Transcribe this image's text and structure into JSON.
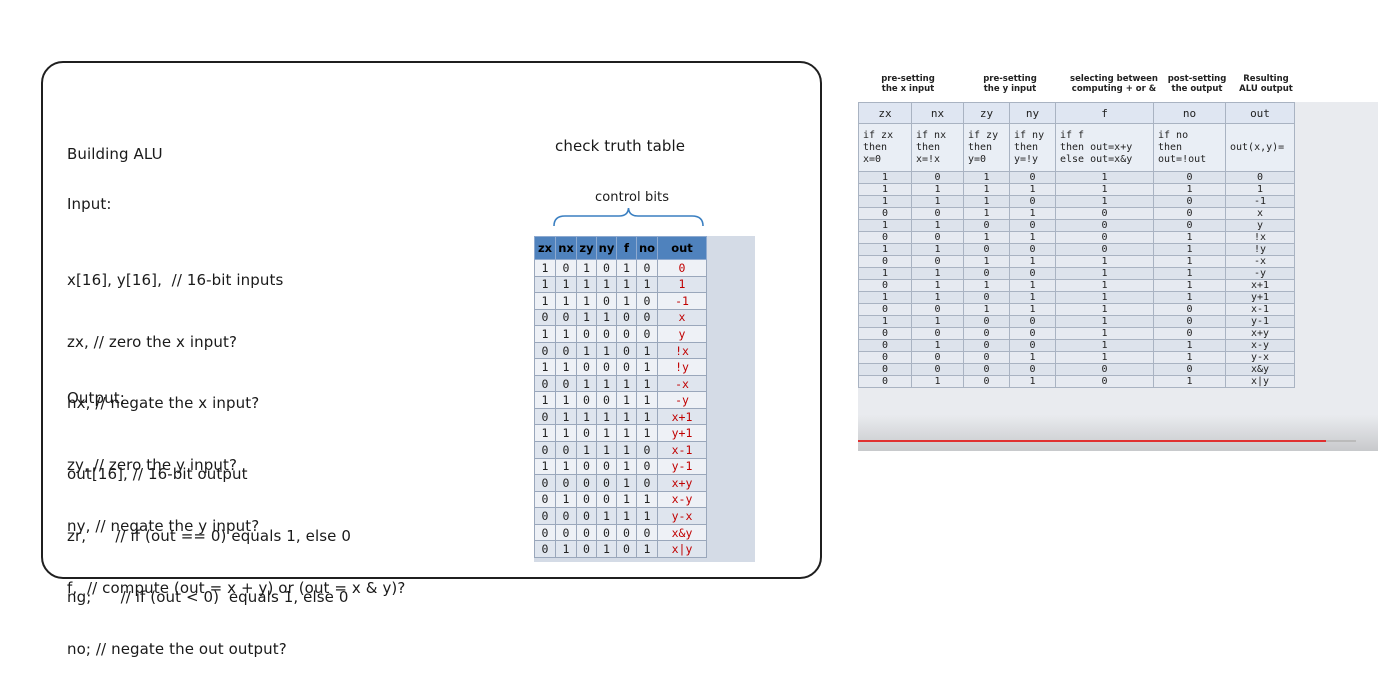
{
  "board": {
    "title": "Building ALU",
    "input_heading": "Input:",
    "input_lines": [
      "x[16], y[16],  // 16-bit inputs",
      "zx, // zero the x input?",
      "nx, // negate the x input?",
      "zy, // zero the y input?",
      "ny, // negate the y input?",
      "f,  // compute (out = x + y) or (out = x & y)?",
      "no; // negate the out output?"
    ],
    "output_heading": "Output:",
    "output_lines": [
      "out[16], // 16-bit output",
      "zr,      // if (out == 0) equals 1, else 0",
      "ng;      // if (out < 0)  equals 1, else 0"
    ],
    "check_title": "check truth table",
    "control_bits_label": "control bits"
  },
  "small_table": {
    "headers": [
      "zx",
      "nx",
      "zy",
      "ny",
      "f",
      "no",
      "out"
    ],
    "rows": [
      [
        "1",
        "0",
        "1",
        "0",
        "1",
        "0",
        "0"
      ],
      [
        "1",
        "1",
        "1",
        "1",
        "1",
        "1",
        "1"
      ],
      [
        "1",
        "1",
        "1",
        "0",
        "1",
        "0",
        "-1"
      ],
      [
        "0",
        "0",
        "1",
        "1",
        "0",
        "0",
        "x"
      ],
      [
        "1",
        "1",
        "0",
        "0",
        "0",
        "0",
        "y"
      ],
      [
        "0",
        "0",
        "1",
        "1",
        "0",
        "1",
        "!x"
      ],
      [
        "1",
        "1",
        "0",
        "0",
        "0",
        "1",
        "!y"
      ],
      [
        "0",
        "0",
        "1",
        "1",
        "1",
        "1",
        "-x"
      ],
      [
        "1",
        "1",
        "0",
        "0",
        "1",
        "1",
        "-y"
      ],
      [
        "0",
        "1",
        "1",
        "1",
        "1",
        "1",
        "x+1"
      ],
      [
        "1",
        "1",
        "0",
        "1",
        "1",
        "1",
        "y+1"
      ],
      [
        "0",
        "0",
        "1",
        "1",
        "1",
        "0",
        "x-1"
      ],
      [
        "1",
        "1",
        "0",
        "0",
        "1",
        "0",
        "y-1"
      ],
      [
        "0",
        "0",
        "0",
        "0",
        "1",
        "0",
        "x+y"
      ],
      [
        "0",
        "1",
        "0",
        "0",
        "1",
        "1",
        "x-y"
      ],
      [
        "0",
        "0",
        "0",
        "1",
        "1",
        "1",
        "y-x"
      ],
      [
        "0",
        "0",
        "0",
        "0",
        "0",
        "0",
        "x&y"
      ],
      [
        "0",
        "1",
        "0",
        "1",
        "0",
        "1",
        "x|y"
      ]
    ]
  },
  "big_table": {
    "group_captions": [
      "pre-setting\nthe x input",
      "pre-setting\nthe y input",
      "selecting between\ncomputing + or &",
      "post-setting\nthe output",
      "Resulting\nALU output"
    ],
    "headers": [
      "zx",
      "nx",
      "zy",
      "ny",
      "f",
      "no",
      "out"
    ],
    "descriptions": [
      "if zx\nthen\nx=0",
      "if nx\nthen\nx=!x",
      "if zy\nthen\ny=0",
      "if ny\nthen\ny=!y",
      "if f\nthen out=x+y\nelse out=x&y",
      "if no\nthen\nout=!out",
      "out(x,y)="
    ],
    "rows": [
      [
        "1",
        "0",
        "1",
        "0",
        "1",
        "0",
        "0"
      ],
      [
        "1",
        "1",
        "1",
        "1",
        "1",
        "1",
        "1"
      ],
      [
        "1",
        "1",
        "1",
        "0",
        "1",
        "0",
        "-1"
      ],
      [
        "0",
        "0",
        "1",
        "1",
        "0",
        "0",
        "x"
      ],
      [
        "1",
        "1",
        "0",
        "0",
        "0",
        "0",
        "y"
      ],
      [
        "0",
        "0",
        "1",
        "1",
        "0",
        "1",
        "!x"
      ],
      [
        "1",
        "1",
        "0",
        "0",
        "0",
        "1",
        "!y"
      ],
      [
        "0",
        "0",
        "1",
        "1",
        "1",
        "1",
        "-x"
      ],
      [
        "1",
        "1",
        "0",
        "0",
        "1",
        "1",
        "-y"
      ],
      [
        "0",
        "1",
        "1",
        "1",
        "1",
        "1",
        "x+1"
      ],
      [
        "1",
        "1",
        "0",
        "1",
        "1",
        "1",
        "y+1"
      ],
      [
        "0",
        "0",
        "1",
        "1",
        "1",
        "0",
        "x-1"
      ],
      [
        "1",
        "1",
        "0",
        "0",
        "1",
        "0",
        "y-1"
      ],
      [
        "0",
        "0",
        "0",
        "0",
        "1",
        "0",
        "x+y"
      ],
      [
        "0",
        "1",
        "0",
        "0",
        "1",
        "1",
        "x-y"
      ],
      [
        "0",
        "0",
        "0",
        "1",
        "1",
        "1",
        "y-x"
      ],
      [
        "0",
        "0",
        "0",
        "0",
        "0",
        "0",
        "x&y"
      ],
      [
        "0",
        "1",
        "0",
        "1",
        "0",
        "1",
        "x|y"
      ]
    ]
  },
  "colors": {
    "header_blue": "#4f82bd",
    "out_red": "#c00000",
    "progress_red": "#e03030"
  },
  "video_progress_fraction": 0.9
}
